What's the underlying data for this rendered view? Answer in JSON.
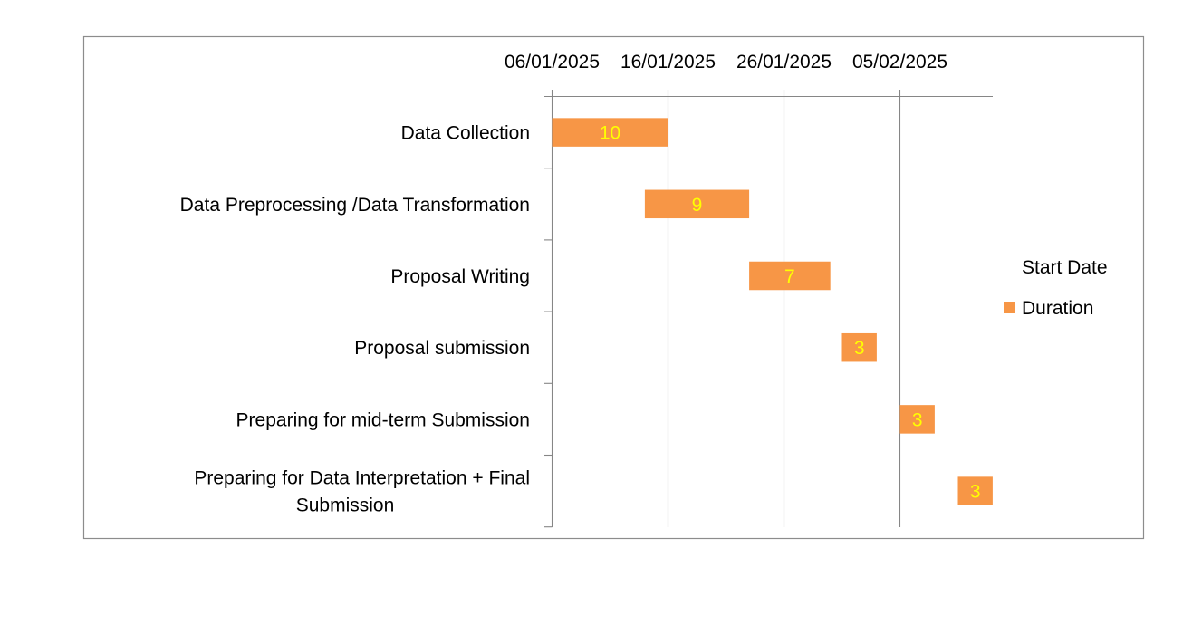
{
  "chart_data": {
    "type": "bar",
    "orientation": "horizontal",
    "stacked": true,
    "categories": [
      "Data Collection",
      "Data Preprocessing /Data Transformation",
      "Proposal Writing",
      "Proposal submission",
      "Preparing for mid-term Submission",
      "Preparing for Data Interpretation + Final Submission"
    ],
    "series": [
      {
        "name": "Start  Date",
        "visible": false,
        "values": [
          "06/01/2025",
          "14/01/2025",
          "23/01/2025",
          "31/01/2025",
          "05/02/2025",
          "10/02/2025"
        ]
      },
      {
        "name": "Duration",
        "color": "#F79646",
        "values": [
          10,
          9,
          7,
          3,
          3,
          3
        ]
      }
    ],
    "x_ticks": [
      "06/01/2025",
      "16/01/2025",
      "26/01/2025",
      "05/02/2025"
    ],
    "xlim": [
      "06/01/2025",
      "14/02/2025"
    ],
    "x_axis_position": "top",
    "category_order": "top-to-bottom",
    "grid": "vertical",
    "legend_position": "right",
    "data_label_color": "#FFFF00",
    "bar_color": "#F79646",
    "axis_color": "#868686",
    "border_color": "#8C8C8C"
  }
}
